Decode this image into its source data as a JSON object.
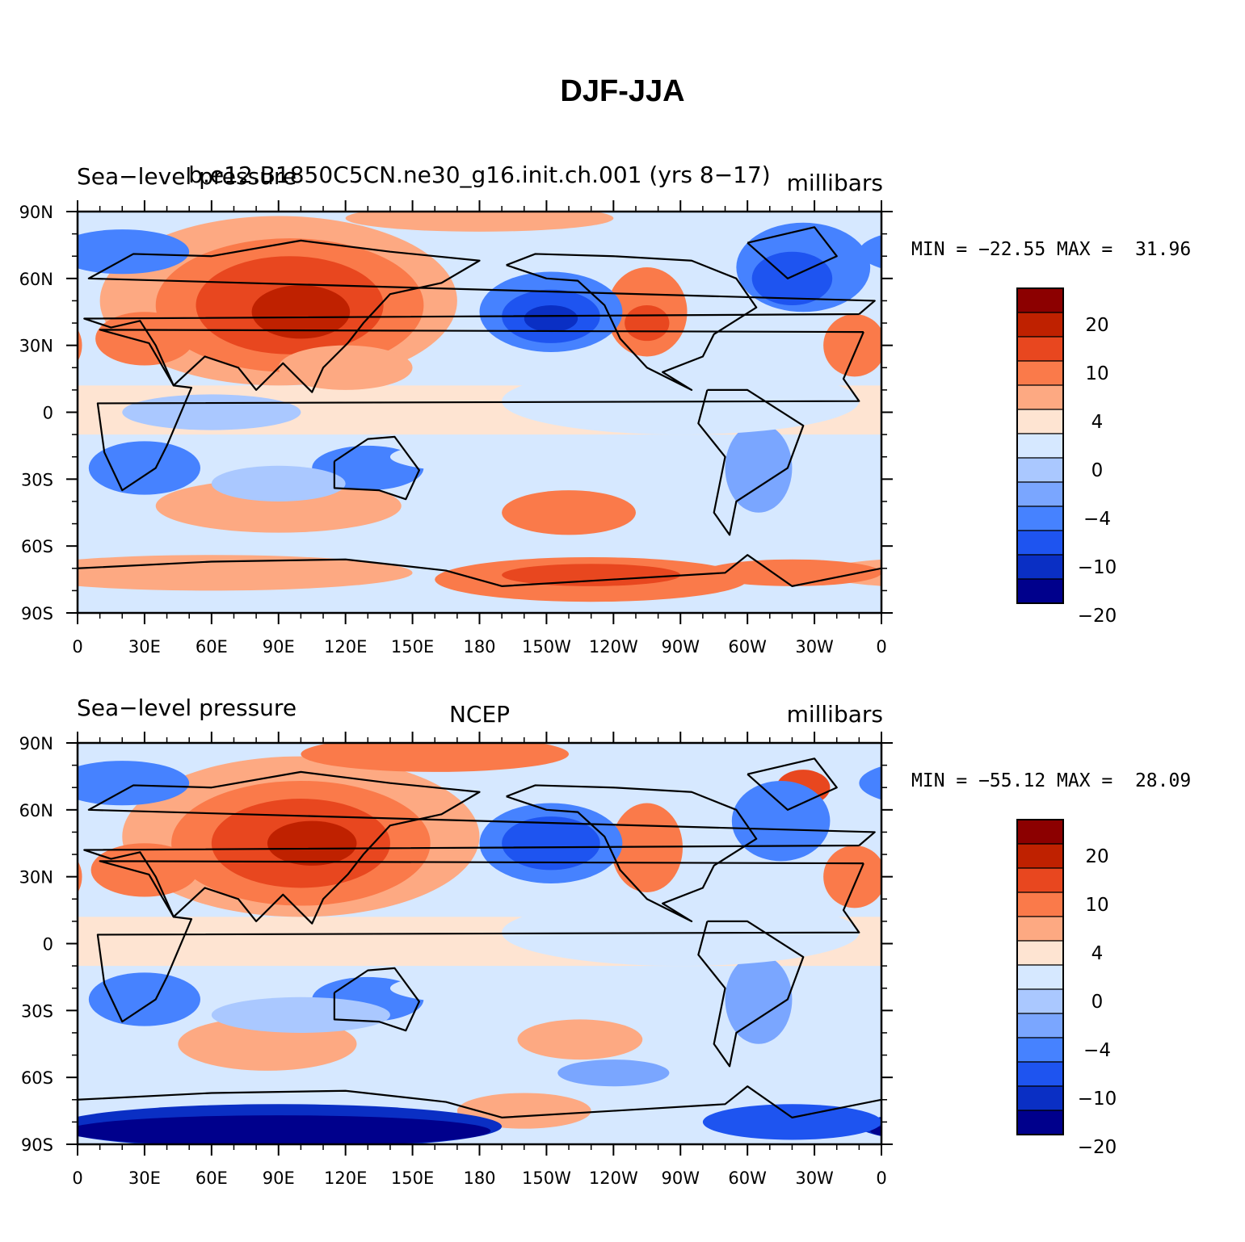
{
  "title": "DJF-JJA",
  "x_ticks": [
    "0",
    "30E",
    "60E",
    "90E",
    "120E",
    "150E",
    "180",
    "150W",
    "120W",
    "90W",
    "60W",
    "30W",
    "0"
  ],
  "y_ticks": [
    "90N",
    "60N",
    "30N",
    "0",
    "30S",
    "60S",
    "90S"
  ],
  "colorbar": {
    "colors": [
      "#8c0000",
      "#bf2100",
      "#e8471f",
      "#fa7a4a",
      "#fda982",
      "#fee4d2",
      "#d6e8ff",
      "#aac8ff",
      "#7aa6ff",
      "#4682ff",
      "#1e54f0",
      "#0a2fc4",
      "#00008c"
    ],
    "labels": [
      "20",
      "10",
      "4",
      "0",
      "−4",
      "−10",
      "−20"
    ]
  },
  "panels": [
    {
      "left_text": "Sea−level pressure",
      "center_text": "b.e12.B1850C5CN.ne30_g16.init.ch.001 (yrs 8−17)",
      "right_text": "millibars",
      "minmax": "MIN = −22.55 MAX =  31.96"
    },
    {
      "left_text": "Sea−level pressure",
      "center_text": "NCEP",
      "right_text": "millibars",
      "minmax": "MIN = −55.12 MAX =  28.09"
    }
  ]
}
